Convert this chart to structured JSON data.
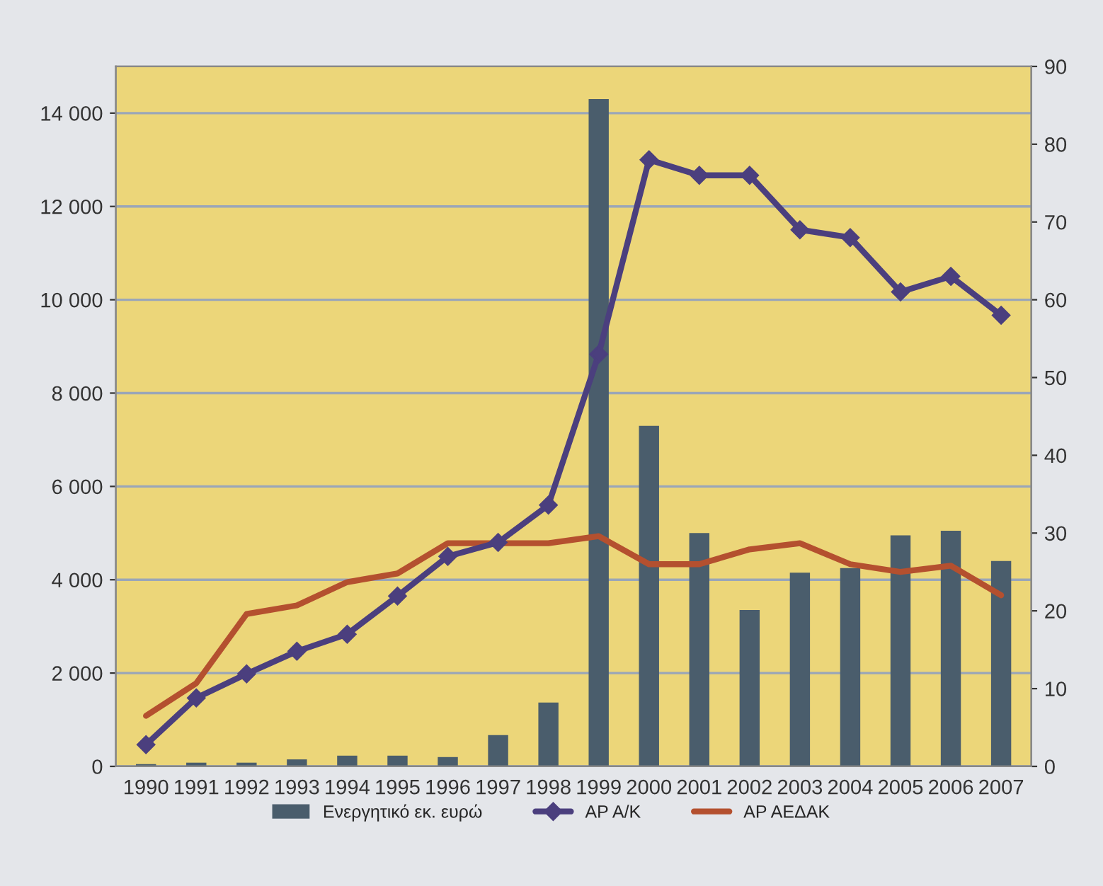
{
  "chart_data": {
    "type": "bar",
    "categories": [
      "1990",
      "1991",
      "1992",
      "1993",
      "1994",
      "1995",
      "1996",
      "1997",
      "1998",
      "1999",
      "2000",
      "2001",
      "2002",
      "2003",
      "2004",
      "2005",
      "2006",
      "2007"
    ],
    "series": [
      {
        "name": "Ενεργητικό εκ. ευρώ",
        "color": "#4a5d6c",
        "values": [
          50,
          80,
          80,
          150,
          230,
          230,
          200,
          670,
          1370,
          14300,
          7300,
          5000,
          3350,
          4150,
          4250,
          4950,
          5050,
          4400
        ]
      },
      {
        "name": "ΑΡ Α/Κ",
        "type": "line",
        "axis": "y2",
        "color": "#4b3f7e",
        "marker": "diamond",
        "values": [
          2.8,
          8.8,
          11.9,
          14.8,
          17,
          21.9,
          27,
          28.8,
          33.6,
          53,
          78,
          76,
          76,
          69,
          68,
          61,
          63,
          58
        ]
      },
      {
        "name": "ΑΡ ΑΕΔΑΚ",
        "type": "line",
        "axis": "y2",
        "color": "#b4502f",
        "marker": "none",
        "values": [
          6.5,
          10.7,
          19.6,
          20.7,
          23.7,
          24.8,
          28.7,
          28.7,
          28.7,
          29.6,
          26,
          26,
          27.9,
          28.7,
          26,
          25,
          25.8,
          22
        ]
      }
    ],
    "ylim": [
      0,
      15000
    ],
    "yticks": [
      0,
      {
        "value": 2000,
        "label": "2 000"
      },
      {
        "value": 4000,
        "label": "4 000"
      },
      {
        "value": 6000,
        "label": "6 000"
      },
      {
        "value": 8000,
        "label": "8 000"
      },
      {
        "value": 10000,
        "label": "10 000"
      },
      {
        "value": 12000,
        "label": "12 000"
      },
      {
        "value": 14000,
        "label": "14 000"
      }
    ],
    "y2lim": [
      0,
      90
    ],
    "y2ticks": [
      0,
      10,
      20,
      30,
      40,
      50,
      60,
      70,
      80,
      90
    ],
    "grid": "y",
    "legend": "bottom"
  }
}
